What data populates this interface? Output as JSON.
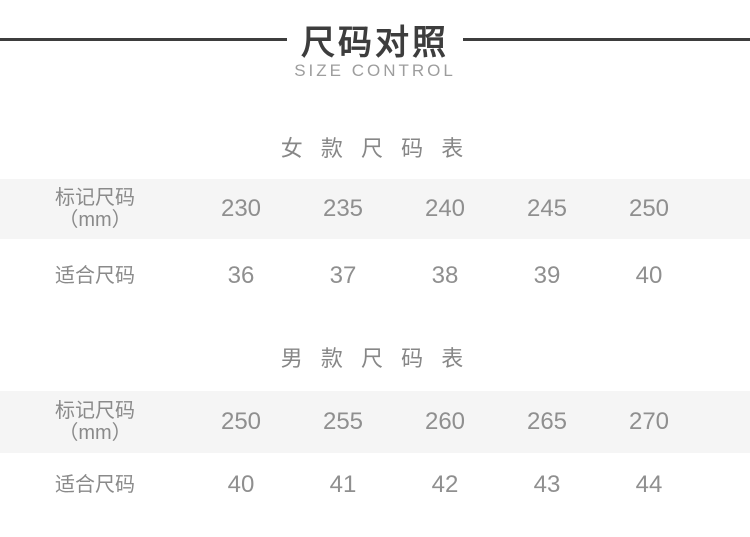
{
  "header": {
    "title": "尺码对照",
    "subtitle": "SIZE CONTROL"
  },
  "colors": {
    "title_dark": "#3d3d3d",
    "subtitle_gray": "#9d9d9d",
    "table_text_gray": "#8f8f8f",
    "shaded_row_bg": "#f5f5f5",
    "page_bg": "#ffffff"
  },
  "tables": [
    {
      "section_title": "女 款 尺 码 表",
      "rows": [
        {
          "label_line1": "标记尺码",
          "label_line2": "（mm）",
          "values": [
            "230",
            "235",
            "240",
            "245",
            "250"
          ]
        },
        {
          "label": "适合尺码",
          "values": [
            "36",
            "37",
            "38",
            "39",
            "40"
          ]
        }
      ]
    },
    {
      "section_title": "男 款 尺 码 表",
      "rows": [
        {
          "label_line1": "标记尺码",
          "label_line2": "（mm）",
          "values": [
            "250",
            "255",
            "260",
            "265",
            "270"
          ]
        },
        {
          "label": "适合尺码",
          "values": [
            "40",
            "41",
            "42",
            "43",
            "44"
          ]
        }
      ]
    }
  ],
  "chart_data": [
    {
      "type": "table",
      "title": "女款尺码表",
      "rows": [
        {
          "label": "标记尺码（mm）",
          "values": [
            230,
            235,
            240,
            245,
            250
          ]
        },
        {
          "label": "适合尺码",
          "values": [
            36,
            37,
            38,
            39,
            40
          ]
        }
      ]
    },
    {
      "type": "table",
      "title": "男款尺码表",
      "rows": [
        {
          "label": "标记尺码（mm）",
          "values": [
            250,
            255,
            260,
            265,
            270
          ]
        },
        {
          "label": "适合尺码",
          "values": [
            40,
            41,
            42,
            43,
            44
          ]
        }
      ]
    }
  ]
}
